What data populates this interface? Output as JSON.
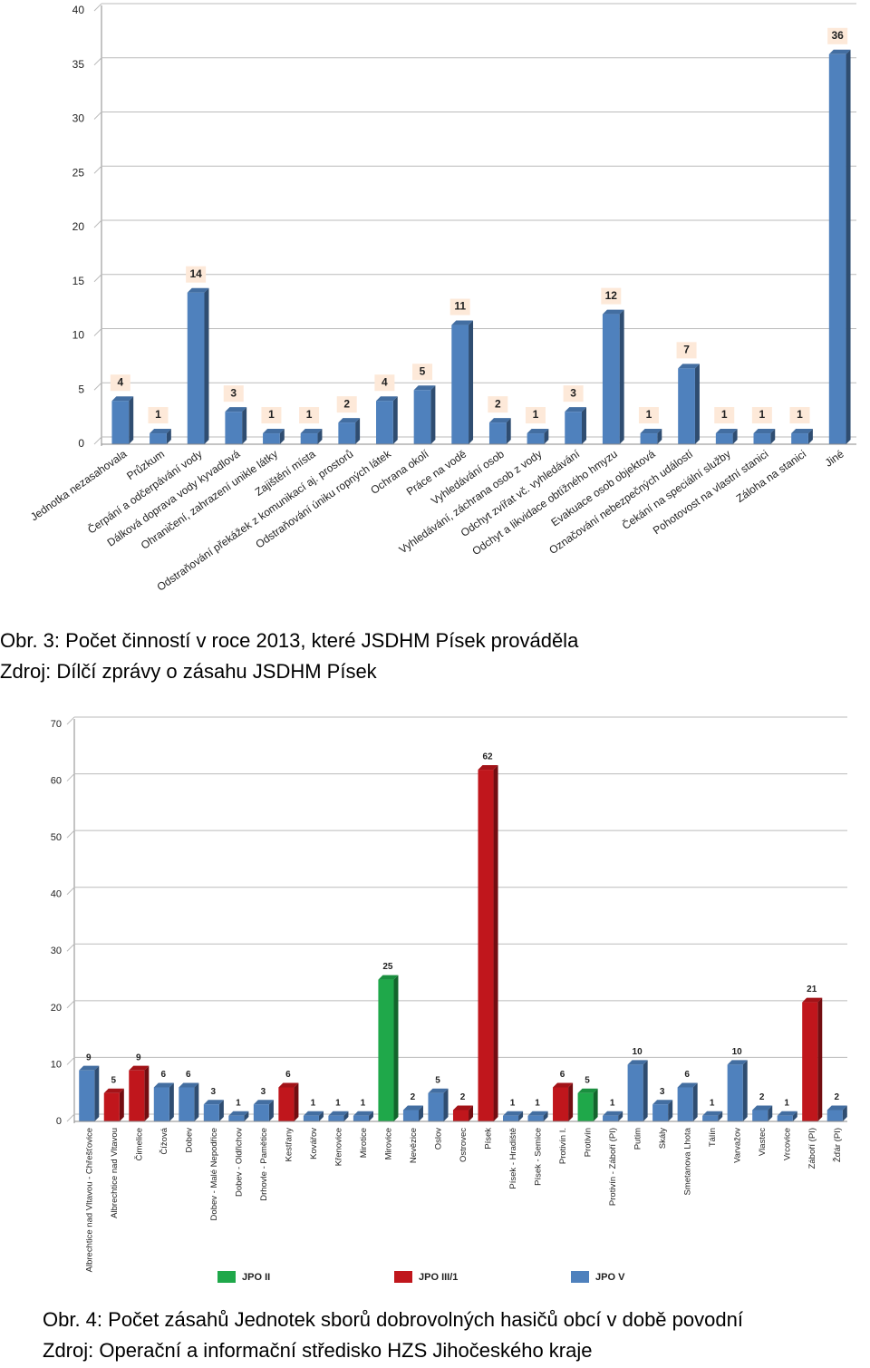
{
  "chart_data": [
    {
      "type": "bar",
      "caption": "Obr. 3: Počet činností v roce 2013, které JSDHM Písek prováděla",
      "source": "Zdroj: Dílčí zprávy o zásahu JSDHM Písek",
      "categories": [
        "Jednotka nezasahovala",
        "Průzkum",
        "Čerpání a odčerpávání vody",
        "Dálková doprava vody kyvadlová",
        "Ohraničení, zahrazení unikle látky",
        "Zajištění místa",
        "Odstraňování překážek z komunikací aj. prostorů",
        "Odstraňování úniku ropných látek",
        "Ochrana okolí",
        "Práce na vodě",
        "Vyhledávání osob",
        "Vyhledávání, záchrana osob z vody",
        "Odchyt zvířat vč. vyhledávání",
        "Odchyt a likvidace obtížného hmyzu",
        "Evakuace osob objektová",
        "Označování nebezpečných událostí",
        "Čekání na speciální služby",
        "Pohotovost na vlastní stanici",
        "Záloha na stanici",
        "Jiné"
      ],
      "values": [
        4,
        1,
        14,
        3,
        1,
        1,
        2,
        4,
        5,
        11,
        2,
        1,
        3,
        12,
        1,
        7,
        1,
        1,
        1,
        36
      ],
      "color": "#4f81bd",
      "ylim": [
        0,
        40
      ],
      "yticks": [
        0,
        5,
        10,
        15,
        20,
        25,
        30,
        35,
        40
      ],
      "grid": true
    },
    {
      "type": "bar",
      "caption": "Obr. 4: Počet zásahů Jednotek sborů dobrovolných hasičů obcí v době povodní",
      "source": "Zdroj: Operační a informační středisko HZS Jihočeského kraje",
      "categories": [
        "Albrechtice nad Vltavou - Chřešťovice",
        "Albrechtice nad Vltavou",
        "Čimelice",
        "Čížová",
        "Dobev",
        "Dobev - Malé Nepodřice",
        "Dobev - Oldřichov",
        "Drhovle - Pamětice",
        "Kestřany",
        "Kovářov",
        "Křenovice",
        "Mirotice",
        "Mirovice",
        "Nevězice",
        "Oslov",
        "Ostrovec",
        "Písek",
        "Písek - Hradiště",
        "Písek - Semice",
        "Protivín I.",
        "Protivín",
        "Protivín - Záboří (PI)",
        "Putim",
        "Skály",
        "Smetanova Lhota",
        "Tálín",
        "Varvažov",
        "Vlastec",
        "Vrcovice",
        "Záboří (PI)",
        "Žďár (PI)"
      ],
      "values": [
        9,
        5,
        9,
        6,
        6,
        3,
        1,
        3,
        6,
        1,
        1,
        1,
        25,
        2,
        5,
        2,
        62,
        1,
        1,
        6,
        5,
        1,
        10,
        3,
        6,
        1,
        10,
        2,
        1,
        21,
        2
      ],
      "colors": [
        "#4f81bd",
        "#c0161c",
        "#c0161c",
        "#4f81bd",
        "#4f81bd",
        "#4f81bd",
        "#4f81bd",
        "#4f81bd",
        "#c0161c",
        "#4f81bd",
        "#4f81bd",
        "#4f81bd",
        "#1fa84a",
        "#4f81bd",
        "#4f81bd",
        "#c0161c",
        "#c0161c",
        "#4f81bd",
        "#4f81bd",
        "#c0161c",
        "#1fa84a",
        "#4f81bd",
        "#4f81bd",
        "#4f81bd",
        "#4f81bd",
        "#4f81bd",
        "#4f81bd",
        "#4f81bd",
        "#4f81bd",
        "#c0161c",
        "#4f81bd"
      ],
      "legend": [
        {
          "name": "JPO II",
          "color": "#1fa84a"
        },
        {
          "name": "JPO III/1",
          "color": "#c0161c"
        },
        {
          "name": "JPO V",
          "color": "#4f81bd"
        }
      ],
      "ylim": [
        0,
        70
      ],
      "yticks": [
        0,
        10,
        20,
        30,
        40,
        50,
        60,
        70
      ],
      "grid": true
    }
  ]
}
